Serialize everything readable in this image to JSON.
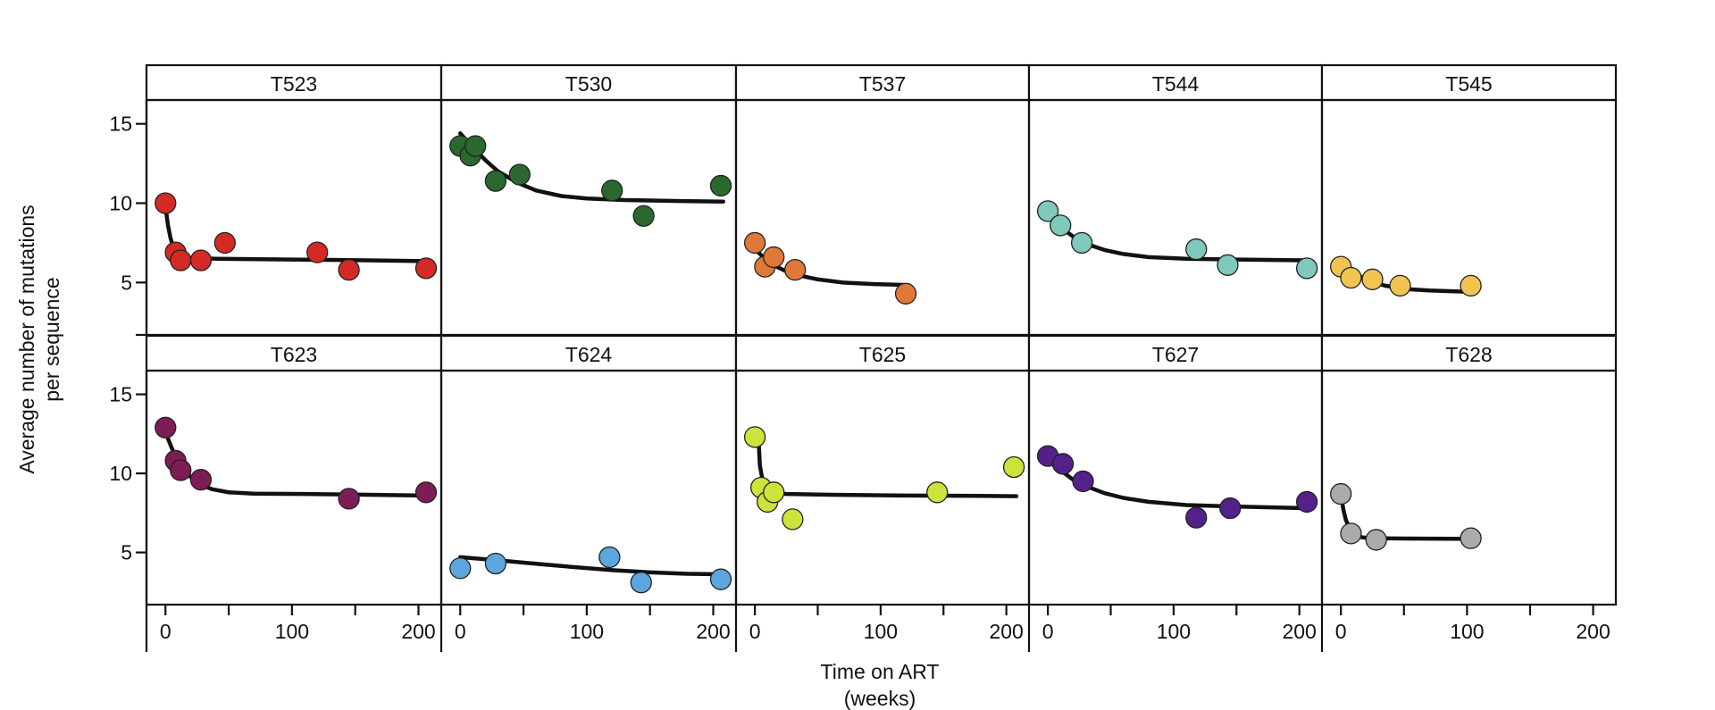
{
  "chart_data": {
    "type": "scatter",
    "layout": "facet-grid",
    "xlabel": [
      "Time on ART",
      "(weeks)"
    ],
    "ylabel": [
      "Average number of mutations",
      "per sequence"
    ],
    "xlim": [
      -15,
      218
    ],
    "ylim": [
      1.7,
      16.5
    ],
    "xticks": [
      0,
      100,
      200
    ],
    "yticks": [
      5,
      10,
      15
    ],
    "panels": [
      {
        "label": "T523",
        "color": "#d42a26",
        "points": [
          [
            0,
            10.0
          ],
          [
            8,
            6.9
          ],
          [
            12,
            6.4
          ],
          [
            28,
            6.4
          ],
          [
            47,
            7.5
          ],
          [
            120,
            6.9
          ],
          [
            145,
            5.8
          ],
          [
            206,
            5.9
          ]
        ],
        "fit": [
          [
            0,
            9.8
          ],
          [
            2,
            8.6
          ],
          [
            4,
            7.8
          ],
          [
            6,
            7.3
          ],
          [
            9,
            6.9
          ],
          [
            13,
            6.65
          ],
          [
            20,
            6.55
          ],
          [
            40,
            6.5
          ],
          [
            100,
            6.45
          ],
          [
            160,
            6.4
          ],
          [
            205,
            6.35
          ]
        ]
      },
      {
        "label": "T530",
        "color": "#2a6830",
        "points": [
          [
            0,
            13.6
          ],
          [
            8,
            13.0
          ],
          [
            12,
            13.6
          ],
          [
            28,
            11.4
          ],
          [
            47,
            11.8
          ],
          [
            120,
            10.8
          ],
          [
            145,
            9.2
          ],
          [
            206,
            11.1
          ]
        ],
        "fit": [
          [
            0,
            14.4
          ],
          [
            10,
            13.5
          ],
          [
            20,
            12.7
          ],
          [
            30,
            12.0
          ],
          [
            45,
            11.3
          ],
          [
            60,
            10.8
          ],
          [
            80,
            10.45
          ],
          [
            100,
            10.3
          ],
          [
            130,
            10.2
          ],
          [
            160,
            10.15
          ],
          [
            208,
            10.1
          ]
        ]
      },
      {
        "label": "T537",
        "color": "#e0783a",
        "points": [
          [
            0,
            7.5
          ],
          [
            8,
            6.0
          ],
          [
            15,
            6.6
          ],
          [
            32,
            5.8
          ],
          [
            120,
            4.3
          ]
        ],
        "fit": [
          [
            0,
            7.1
          ],
          [
            8,
            6.5
          ],
          [
            16,
            6.05
          ],
          [
            25,
            5.7
          ],
          [
            35,
            5.45
          ],
          [
            50,
            5.2
          ],
          [
            70,
            5.0
          ],
          [
            95,
            4.9
          ],
          [
            118,
            4.85
          ]
        ]
      },
      {
        "label": "T544",
        "color": "#7ec8bc",
        "points": [
          [
            0,
            9.5
          ],
          [
            10,
            8.6
          ],
          [
            27,
            7.5
          ],
          [
            118,
            7.1
          ],
          [
            143,
            6.1
          ],
          [
            206,
            5.9
          ]
        ],
        "fit": [
          [
            0,
            9.2
          ],
          [
            10,
            8.5
          ],
          [
            20,
            7.9
          ],
          [
            30,
            7.45
          ],
          [
            45,
            7.05
          ],
          [
            60,
            6.8
          ],
          [
            80,
            6.6
          ],
          [
            110,
            6.5
          ],
          [
            150,
            6.45
          ],
          [
            205,
            6.4
          ]
        ]
      },
      {
        "label": "T545",
        "color": "#f1c452",
        "points": [
          [
            0,
            6.0
          ],
          [
            8,
            5.3
          ],
          [
            25,
            5.2
          ],
          [
            47,
            4.8
          ],
          [
            103,
            4.8
          ]
        ],
        "fit": [
          [
            0,
            6.3
          ],
          [
            8,
            5.75
          ],
          [
            16,
            5.35
          ],
          [
            25,
            5.05
          ],
          [
            35,
            4.8
          ],
          [
            50,
            4.6
          ],
          [
            70,
            4.5
          ],
          [
            88,
            4.45
          ],
          [
            103,
            4.42
          ]
        ]
      },
      {
        "label": "T623",
        "color": "#7e1c55",
        "points": [
          [
            0,
            12.9
          ],
          [
            8,
            10.8
          ],
          [
            12,
            10.2
          ],
          [
            28,
            9.6
          ],
          [
            145,
            8.4
          ],
          [
            206,
            8.8
          ]
        ],
        "fit": [
          [
            0,
            12.6
          ],
          [
            5,
            11.6
          ],
          [
            10,
            10.7
          ],
          [
            18,
            9.9
          ],
          [
            27,
            9.3
          ],
          [
            37,
            9.0
          ],
          [
            50,
            8.8
          ],
          [
            70,
            8.72
          ],
          [
            110,
            8.7
          ],
          [
            160,
            8.65
          ],
          [
            205,
            8.6
          ]
        ]
      },
      {
        "label": "T624",
        "color": "#5ba7dd",
        "points": [
          [
            0,
            4.0
          ],
          [
            28,
            4.3
          ],
          [
            118,
            4.7
          ],
          [
            143,
            3.1
          ],
          [
            206,
            3.3
          ]
        ],
        "fit": [
          [
            0,
            4.7
          ],
          [
            30,
            4.5
          ],
          [
            60,
            4.28
          ],
          [
            90,
            4.07
          ],
          [
            120,
            3.88
          ],
          [
            150,
            3.74
          ],
          [
            180,
            3.65
          ],
          [
            205,
            3.62
          ]
        ]
      },
      {
        "label": "T625",
        "color": "#cde23a",
        "points": [
          [
            0,
            12.3
          ],
          [
            5,
            9.1
          ],
          [
            10,
            8.2
          ],
          [
            15,
            8.8
          ],
          [
            30,
            7.1
          ],
          [
            145,
            8.8
          ],
          [
            206,
            10.4
          ]
        ],
        "fit": [
          [
            3,
            12.1
          ],
          [
            4,
            10.5
          ],
          [
            6,
            9.6
          ],
          [
            9,
            9.05
          ],
          [
            14,
            8.8
          ],
          [
            25,
            8.7
          ],
          [
            60,
            8.65
          ],
          [
            120,
            8.6
          ],
          [
            180,
            8.58
          ],
          [
            208,
            8.56
          ]
        ]
      },
      {
        "label": "T627",
        "color": "#542089",
        "points": [
          [
            0,
            11.1
          ],
          [
            12,
            10.6
          ],
          [
            28,
            9.5
          ],
          [
            118,
            7.2
          ],
          [
            145,
            7.8
          ],
          [
            206,
            8.2
          ]
        ],
        "fit": [
          [
            0,
            10.8
          ],
          [
            10,
            10.2
          ],
          [
            20,
            9.6
          ],
          [
            30,
            9.2
          ],
          [
            45,
            8.75
          ],
          [
            60,
            8.45
          ],
          [
            80,
            8.2
          ],
          [
            110,
            8.0
          ],
          [
            150,
            7.9
          ],
          [
            205,
            7.8
          ]
        ]
      },
      {
        "label": "T628",
        "color": "#ababab",
        "points": [
          [
            0,
            8.7
          ],
          [
            8,
            6.2
          ],
          [
            28,
            5.8
          ],
          [
            103,
            5.9
          ]
        ],
        "fit": [
          [
            0,
            8.6
          ],
          [
            2,
            7.7
          ],
          [
            4,
            7.05
          ],
          [
            7,
            6.5
          ],
          [
            11,
            6.15
          ],
          [
            17,
            5.95
          ],
          [
            25,
            5.9
          ],
          [
            50,
            5.88
          ],
          [
            103,
            5.86
          ]
        ]
      }
    ]
  }
}
